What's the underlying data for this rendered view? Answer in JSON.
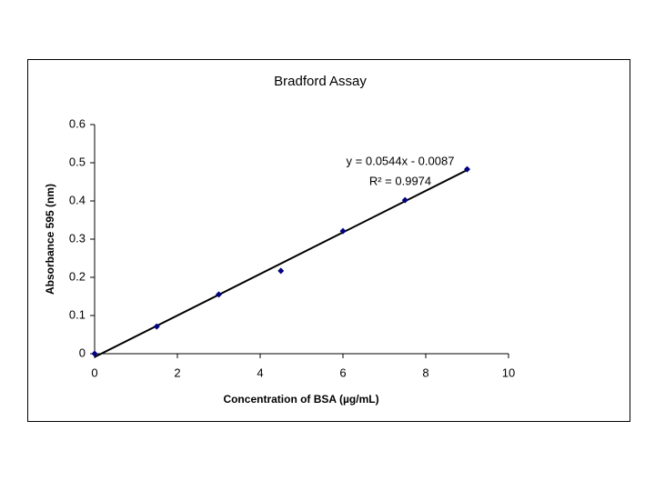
{
  "chart_data": {
    "type": "scatter",
    "title": "Bradford Assay",
    "x_label": "Concentration of BSA (µg/mL)",
    "y_label": "Absorbance 595 (nm)",
    "x": [
      0,
      1.5,
      3,
      4.5,
      6,
      7.5,
      9
    ],
    "values": [
      0,
      0.071,
      0.155,
      0.217,
      0.321,
      0.402,
      0.483
    ],
    "color": "#000080",
    "xlim": [
      0,
      10
    ],
    "xticks": [
      0,
      2,
      4,
      6,
      8,
      10
    ],
    "ylim": [
      0,
      0.6
    ],
    "yticks": [
      0,
      0.1,
      0.2,
      0.3,
      0.4,
      0.5,
      0.6
    ],
    "grid": false,
    "trendline": {
      "equation": "y = 0.0544x - 0.0087",
      "r_squared": "R² = 0.9974",
      "slope": 0.0544,
      "intercept": -0.0087,
      "color": "#000000"
    }
  }
}
